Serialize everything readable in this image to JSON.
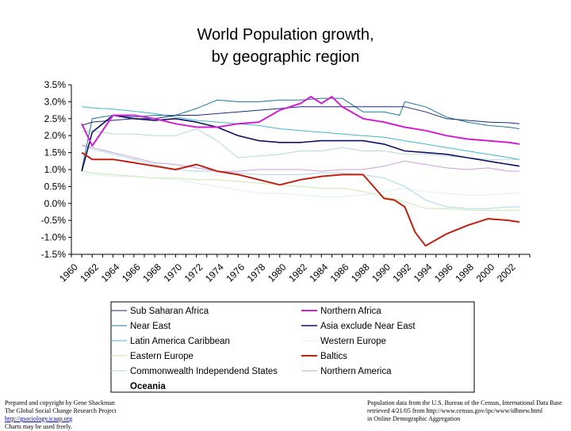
{
  "chart_data": {
    "type": "line",
    "title": [
      "World Population growth,",
      "by geographic region"
    ],
    "xlabel": "",
    "ylabel": "",
    "ylim": [
      -1.5,
      3.5
    ],
    "yticks": [
      3.5,
      3.0,
      2.5,
      2.0,
      1.5,
      1.0,
      0.5,
      0.0,
      -0.5,
      -1.0,
      -1.5
    ],
    "ytick_labels": [
      "3.5%",
      "3.0%",
      "2.5%",
      "2.0%",
      "1.5%",
      "1.0%",
      "0.5%",
      "0.0%",
      "-0.5%",
      "-1.0%",
      "-1.5%"
    ],
    "xlim": [
      1960,
      2004
    ],
    "xticks": [
      1960,
      1962,
      1964,
      1966,
      1968,
      1970,
      1972,
      1974,
      1976,
      1978,
      1980,
      1982,
      1984,
      1986,
      1988,
      1990,
      1992,
      1994,
      1996,
      1998,
      2000,
      2002
    ],
    "xtick_labels": [
      "1960",
      "1962",
      "1964",
      "1966",
      "1968",
      "1970",
      "1972",
      "1974",
      "1976",
      "1978",
      "1980",
      "1982",
      "1984",
      "1986",
      "1988",
      "1990",
      "1992",
      "1994",
      "1996",
      "1998",
      "2000",
      "2002"
    ],
    "grid": false,
    "legend_position": "bottom",
    "series": [
      {
        "name": "Sub Saharan Africa",
        "color": "#1a2a78",
        "width": 1,
        "x": [
          1961,
          1962,
          1964,
          1966,
          1968,
          1970,
          1972,
          1974,
          1976,
          1978,
          1980,
          1982,
          1984,
          1986,
          1988,
          1990,
          1992,
          1994,
          1996,
          1998,
          2000,
          2002,
          2003
        ],
        "values": [
          2.3,
          2.4,
          2.45,
          2.5,
          2.5,
          2.6,
          2.6,
          2.65,
          2.7,
          2.75,
          2.8,
          2.85,
          2.85,
          2.85,
          2.85,
          2.85,
          2.85,
          2.7,
          2.5,
          2.45,
          2.4,
          2.38,
          2.35
        ]
      },
      {
        "name": "Near East",
        "color": "#1a7898",
        "width": 1,
        "x": [
          1961,
          1962,
          1964,
          1966,
          1968,
          1970,
          1972,
          1974,
          1976,
          1978,
          1980,
          1982,
          1984,
          1986,
          1988,
          1990,
          1991.5,
          1992,
          1994,
          1996,
          1998,
          2000,
          2002,
          2003
        ],
        "values": [
          1.0,
          2.5,
          2.6,
          2.55,
          2.6,
          2.6,
          2.8,
          3.05,
          3.0,
          3.0,
          3.05,
          3.05,
          3.1,
          3.1,
          2.7,
          2.7,
          2.6,
          3.0,
          2.85,
          2.55,
          2.4,
          2.3,
          2.25,
          2.2
        ]
      },
      {
        "name": "Latin America Caribbean",
        "color": "#40b8c8",
        "width": 1,
        "x": [
          1961,
          1962,
          1964,
          1966,
          1968,
          1970,
          1972,
          1974,
          1976,
          1978,
          1980,
          1982,
          1984,
          1986,
          1988,
          1990,
          1992,
          1994,
          1996,
          1998,
          2000,
          2002,
          2003
        ],
        "values": [
          2.85,
          2.82,
          2.78,
          2.72,
          2.65,
          2.55,
          2.45,
          2.4,
          2.35,
          2.3,
          2.2,
          2.15,
          2.1,
          2.05,
          2.0,
          1.95,
          1.85,
          1.75,
          1.65,
          1.55,
          1.45,
          1.35,
          1.3
        ]
      },
      {
        "name": "Eastern Europe",
        "color": "#c8e8b0",
        "width": 1,
        "x": [
          1961,
          1962,
          1964,
          1966,
          1968,
          1970,
          1972,
          1974,
          1976,
          1978,
          1980,
          1982,
          1984,
          1986,
          1988,
          1990,
          1992,
          1994,
          1996,
          1998,
          2000,
          2002,
          2003
        ],
        "values": [
          0.95,
          0.9,
          0.85,
          0.8,
          0.75,
          0.75,
          0.7,
          0.7,
          0.65,
          0.6,
          0.55,
          0.5,
          0.45,
          0.45,
          0.35,
          0.2,
          0.05,
          -0.15,
          -0.15,
          -0.2,
          -0.2,
          -0.2,
          -0.2
        ]
      },
      {
        "name": "Commonwealth Independend States",
        "color": "#a8d8e8",
        "width": 1,
        "x": [
          1961,
          1962,
          1964,
          1966,
          1968,
          1970,
          1972,
          1974,
          1976,
          1978,
          1980,
          1982,
          1984,
          1986,
          1988,
          1990,
          1992,
          1994,
          1996,
          1998,
          2000,
          2002,
          2003
        ],
        "values": [
          1.75,
          1.6,
          1.45,
          1.3,
          1.15,
          1.0,
          0.95,
          0.95,
          0.9,
          0.85,
          0.85,
          0.85,
          0.9,
          0.9,
          0.85,
          0.75,
          0.5,
          0.1,
          -0.1,
          -0.15,
          -0.15,
          -0.1,
          -0.1
        ]
      },
      {
        "name": "Northern Africa",
        "color": "#d020d0",
        "width": 2,
        "x": [
          1961,
          1962,
          1964,
          1966,
          1968,
          1970,
          1972,
          1974,
          1976,
          1978,
          1980,
          1982,
          1983,
          1984,
          1985,
          1986,
          1988,
          1990,
          1992,
          1994,
          1996,
          1998,
          2000,
          2002,
          2003
        ],
        "values": [
          2.35,
          1.7,
          2.6,
          2.6,
          2.5,
          2.35,
          2.25,
          2.25,
          2.35,
          2.4,
          2.75,
          2.95,
          3.15,
          2.95,
          3.15,
          2.85,
          2.5,
          2.4,
          2.25,
          2.15,
          2.0,
          1.9,
          1.85,
          1.8,
          1.75
        ]
      },
      {
        "name": "Asia exclude Near East",
        "color": "#101060",
        "width": 1.6,
        "x": [
          1961,
          1962,
          1964,
          1966,
          1968,
          1970,
          1972,
          1974,
          1976,
          1978,
          1980,
          1982,
          1984,
          1986,
          1988,
          1990,
          1992,
          1994,
          1996,
          1998,
          2000,
          2002,
          2003
        ],
        "values": [
          0.95,
          2.1,
          2.6,
          2.5,
          2.45,
          2.5,
          2.4,
          2.25,
          2.0,
          1.85,
          1.8,
          1.8,
          1.85,
          1.85,
          1.85,
          1.75,
          1.55,
          1.5,
          1.45,
          1.35,
          1.25,
          1.15,
          1.1
        ]
      },
      {
        "name": "Western Europe",
        "color": "#e0eef8",
        "width": 1,
        "x": [
          1961,
          1962,
          1964,
          1966,
          1968,
          1970,
          1972,
          1974,
          1976,
          1978,
          1980,
          1982,
          1984,
          1986,
          1988,
          1990,
          1992,
          1994,
          1996,
          1998,
          2000,
          2002,
          2003
        ],
        "values": [
          0.85,
          0.85,
          0.8,
          0.8,
          0.75,
          0.7,
          0.6,
          0.5,
          0.4,
          0.3,
          0.3,
          0.25,
          0.2,
          0.2,
          0.25,
          0.35,
          0.45,
          0.35,
          0.3,
          0.25,
          0.25,
          0.3,
          0.3
        ]
      },
      {
        "name": "Baltics",
        "color": "#c02010",
        "width": 2,
        "x": [
          1961,
          1962,
          1964,
          1966,
          1968,
          1970,
          1972,
          1974,
          1976,
          1978,
          1980,
          1982,
          1984,
          1986,
          1988,
          1989,
          1990,
          1991,
          1992,
          1993,
          1994,
          1996,
          1998,
          2000,
          2002,
          2003
        ],
        "values": [
          1.5,
          1.3,
          1.3,
          1.2,
          1.1,
          1.0,
          1.15,
          0.95,
          0.85,
          0.7,
          0.55,
          0.7,
          0.8,
          0.85,
          0.85,
          0.5,
          0.15,
          0.1,
          -0.1,
          -0.85,
          -1.25,
          -0.9,
          -0.65,
          -0.45,
          -0.5,
          -0.55
        ]
      },
      {
        "name": "Northern America",
        "color": "#c8a0d8",
        "width": 1,
        "x": [
          1961,
          1962,
          1964,
          1966,
          1968,
          1970,
          1972,
          1974,
          1976,
          1978,
          1980,
          1982,
          1984,
          1986,
          1988,
          1990,
          1992,
          1994,
          1996,
          1998,
          2000,
          2002,
          2003
        ],
        "values": [
          1.7,
          1.65,
          1.5,
          1.35,
          1.2,
          1.15,
          1.05,
          0.95,
          0.95,
          1.0,
          1.0,
          1.0,
          0.95,
          1.0,
          1.0,
          1.1,
          1.25,
          1.15,
          1.05,
          1.0,
          1.05,
          0.95,
          0.95
        ]
      },
      {
        "name": "Oceania",
        "color": "#b8d8d8",
        "width": 1,
        "x": [
          1961,
          1962,
          1964,
          1966,
          1968,
          1970,
          1972,
          1974,
          1976,
          1978,
          1980,
          1982,
          1984,
          1986,
          1988,
          1990,
          1992,
          1994,
          1996,
          1998,
          2000,
          2002,
          2003
        ],
        "values": [
          2.1,
          2.15,
          2.05,
          2.05,
          2.0,
          2.0,
          2.2,
          1.85,
          1.35,
          1.4,
          1.45,
          1.55,
          1.55,
          1.65,
          1.55,
          1.55,
          1.45,
          1.45,
          1.4,
          1.35,
          1.3,
          1.3,
          1.3
        ]
      }
    ],
    "legend": {
      "left": [
        "Sub Saharan Africa",
        "Near East",
        "Latin America Caribbean",
        "Eastern Europe",
        "Commonwealth Independend States",
        "Oceania"
      ],
      "right": [
        "Northern Africa",
        "Asia exclude Near East",
        "Western Europe",
        "Baltics",
        "Northern America"
      ]
    }
  },
  "footer": {
    "left_lines": [
      "Prepared and copyright by Gene Shackman",
      "The Global Social Change Research Project"
    ],
    "left_link": "http://gsociology.icaap.org",
    "left_last": "Charts may be used freely.",
    "right_lines": [
      "Population data from the U.S. Bureau of the Census, International Data Base",
      "retrieved 4/21/05 from http://www.census.gov/ipc/www/idbnew.html",
      "in Online Demographic Aggregation"
    ]
  }
}
